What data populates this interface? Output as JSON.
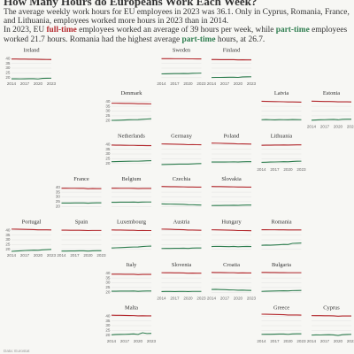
{
  "chart_data": {
    "type": "line",
    "title": "How Many Hours do Europeans Work Each Week?",
    "subtitle": "The average weekly work hours for EU employees in 2023 was 36.1. Only in Cyprus, Romania, France, and Lithuania, employees worked more hours in 2023 than in 2014.",
    "subtitle_2": [
      "In 2023, EU ",
      "full-time",
      " employees worked an average of 39 hours per week, while ",
      "part-time",
      " employees worked 21.7 hours. Romania had the highest average ",
      "part-time",
      " hours, at 26.7."
    ],
    "source": "Data: Eurostat",
    "colors": [
      "#b3282d",
      "#2e7d4f"
    ],
    "x": [
      2014,
      2015,
      2016,
      2017,
      2018,
      2019,
      2020,
      2021,
      2022,
      2023
    ],
    "xlim": [
      2014,
      2023
    ],
    "xticks": [
      2014,
      2017,
      2020,
      2023
    ],
    "ylim": [
      18,
      42
    ],
    "yticks": [
      20,
      25,
      30,
      35,
      40
    ],
    "grid": true,
    "panels": [
      {
        "title": "Ireland",
        "full_time": [
          39.5,
          39.5,
          39.4,
          39.4,
          39.3,
          39.3,
          39.2,
          39.1,
          39.0,
          38.9
        ],
        "part_time": [
          18.9,
          18.9,
          18.8,
          18.9,
          19.0,
          19.0,
          18.7,
          19.3,
          19.4,
          19.5
        ]
      },
      {
        "title": "Sweden",
        "full_time": [
          39.9,
          39.9,
          39.9,
          39.8,
          39.8,
          39.8,
          39.7,
          39.7,
          39.6,
          39.6
        ],
        "part_time": [
          24.0,
          24.1,
          24.2,
          24.3,
          24.3,
          24.4,
          24.3,
          24.6,
          24.7,
          24.8
        ]
      },
      {
        "title": "Finland",
        "full_time": [
          38.9,
          38.9,
          38.8,
          38.8,
          38.8,
          38.8,
          38.6,
          38.7,
          38.6,
          38.6
        ],
        "part_time": [
          20.2,
          20.3,
          20.3,
          20.4,
          20.5,
          20.5,
          20.3,
          20.8,
          20.9,
          21.0
        ]
      },
      {
        "title": "Denmark",
        "full_time": [
          38.2,
          38.2,
          38.1,
          38.0,
          38.0,
          37.9,
          37.7,
          37.7,
          37.6,
          37.5
        ],
        "part_time": [
          20.3,
          20.4,
          20.5,
          20.7,
          20.9,
          21.0,
          21.1,
          21.4,
          21.7,
          22.0
        ]
      },
      {
        "title": "Latvia",
        "full_time": [
          40.2,
          40.1,
          40.0,
          39.9,
          39.8,
          39.7,
          39.5,
          39.5,
          39.4,
          39.3
        ],
        "part_time": [
          21.0,
          21.2,
          21.0,
          20.8,
          21.1,
          21.0,
          20.9,
          21.2,
          21.1,
          21.0
        ]
      },
      {
        "title": "Estonia",
        "full_time": [
          40.3,
          40.2,
          40.1,
          40.0,
          40.0,
          39.9,
          39.6,
          39.7,
          39.6,
          39.5
        ],
        "part_time": [
          20.5,
          20.7,
          20.9,
          21.0,
          21.2,
          21.3,
          20.9,
          21.4,
          21.5,
          21.5
        ]
      },
      {
        "title": "Netherlands",
        "full_time": [
          39.3,
          39.2,
          39.2,
          39.1,
          39.0,
          39.0,
          38.8,
          38.8,
          38.7,
          38.7
        ],
        "part_time": [
          22.0,
          22.1,
          22.2,
          22.3,
          22.4,
          22.5,
          22.5,
          22.7,
          22.9,
          23.0
        ]
      },
      {
        "title": "Germany",
        "full_time": [
          40.5,
          40.4,
          40.3,
          40.2,
          40.1,
          40.0,
          39.7,
          39.8,
          39.7,
          39.6
        ],
        "part_time": [
          19.0,
          19.1,
          19.2,
          19.3,
          19.4,
          19.5,
          19.4,
          19.7,
          19.9,
          20.0
        ]
      },
      {
        "title": "Poland",
        "full_time": [
          41.4,
          41.3,
          41.2,
          41.0,
          40.9,
          40.8,
          40.5,
          40.6,
          40.4,
          40.3
        ],
        "part_time": [
          21.6,
          21.6,
          21.7,
          21.6,
          21.7,
          21.8,
          21.6,
          21.9,
          22.0,
          22.0
        ]
      },
      {
        "title": "Lithuania",
        "full_time": [
          39.1,
          39.2,
          39.2,
          39.3,
          39.3,
          39.4,
          39.3,
          39.4,
          39.5,
          39.5
        ],
        "part_time": [
          21.3,
          21.4,
          21.6,
          21.7,
          21.8,
          22.0,
          21.9,
          22.2,
          22.4,
          22.5
        ]
      },
      {
        "title": "France",
        "full_time": [
          39.1,
          39.1,
          39.0,
          39.0,
          38.9,
          38.9,
          38.5,
          38.7,
          38.6,
          38.6
        ],
        "part_time": [
          23.6,
          23.6,
          23.6,
          23.7,
          23.7,
          23.7,
          23.5,
          23.7,
          23.8,
          23.8
        ]
      },
      {
        "title": "Belgium",
        "full_time": [
          39.1,
          39.1,
          39.0,
          39.0,
          39.0,
          38.9,
          38.7,
          38.8,
          38.8,
          38.8
        ],
        "part_time": [
          24.4,
          24.4,
          24.5,
          24.5,
          24.5,
          24.6,
          24.4,
          24.6,
          24.7,
          24.7
        ]
      },
      {
        "title": "Czechia",
        "full_time": [
          40.9,
          40.8,
          40.7,
          40.7,
          40.6,
          40.5,
          40.3,
          40.3,
          40.2,
          40.2
        ],
        "part_time": [
          22.7,
          22.6,
          22.5,
          22.4,
          22.3,
          22.2,
          21.9,
          21.8,
          21.6,
          21.5
        ]
      },
      {
        "title": "Slovakia",
        "full_time": [
          40.9,
          40.8,
          40.8,
          40.7,
          40.6,
          40.5,
          40.3,
          40.3,
          40.2,
          40.2
        ],
        "part_time": [
          21.0,
          21.1,
          21.1,
          21.2,
          21.2,
          21.3,
          21.2,
          21.4,
          21.5,
          21.5
        ]
      },
      {
        "title": "Portugal",
        "full_time": [
          41.2,
          41.1,
          41.0,
          40.9,
          40.8,
          40.7,
          40.4,
          40.5,
          40.4,
          40.3
        ],
        "part_time": [
          18.0,
          18.3,
          18.5,
          18.8,
          19.0,
          19.2,
          19.1,
          19.6,
          19.8,
          20.0
        ]
      },
      {
        "title": "Spain",
        "full_time": [
          40.1,
          40.1,
          40.0,
          40.0,
          40.0,
          39.9,
          39.7,
          39.8,
          39.8,
          39.8
        ],
        "part_time": [
          18.3,
          18.3,
          18.4,
          18.4,
          18.5,
          18.5,
          18.3,
          18.5,
          18.6,
          18.6
        ]
      },
      {
        "title": "Luxembourg",
        "full_time": [
          40.3,
          40.2,
          40.2,
          40.1,
          40.0,
          40.0,
          39.7,
          39.8,
          39.7,
          39.7
        ],
        "part_time": [
          21.5,
          21.7,
          21.9,
          22.1,
          22.3,
          22.5,
          22.6,
          23.0,
          23.3,
          23.5
        ]
      },
      {
        "title": "Austria",
        "full_time": [
          41.2,
          41.1,
          41.0,
          40.8,
          40.7,
          40.6,
          40.2,
          40.2,
          40.1,
          40.0
        ],
        "part_time": [
          21.0,
          21.1,
          21.1,
          21.2,
          21.2,
          21.3,
          21.1,
          21.4,
          21.5,
          21.5
        ]
      },
      {
        "title": "Hungary",
        "full_time": [
          40.5,
          40.4,
          40.3,
          40.2,
          40.1,
          40.0,
          39.7,
          39.7,
          39.6,
          39.5
        ],
        "part_time": [
          23.0,
          23.2,
          23.1,
          23.0,
          22.9,
          23.1,
          22.8,
          23.0,
          23.1,
          23.0
        ]
      },
      {
        "title": "Romania",
        "full_time": [
          40.6,
          40.6,
          40.5,
          40.5,
          40.4,
          40.4,
          40.3,
          40.3,
          40.3,
          40.3
        ],
        "part_time": [
          24.3,
          24.5,
          24.4,
          24.6,
          24.9,
          25.2,
          25.1,
          26.3,
          26.5,
          26.7
        ]
      },
      {
        "title": "Italy",
        "full_time": [
          38.9,
          38.9,
          38.9,
          38.8,
          38.8,
          38.8,
          38.5,
          38.7,
          38.7,
          38.7
        ],
        "part_time": [
          21.2,
          21.2,
          21.3,
          21.3,
          21.3,
          21.4,
          21.1,
          21.3,
          21.4,
          21.4
        ]
      },
      {
        "title": "Slovenia",
        "full_time": [
          40.5,
          40.4,
          40.4,
          40.3,
          40.3,
          40.2,
          40.0,
          40.1,
          40.0,
          40.0
        ],
        "part_time": [
          20.8,
          20.9,
          20.9,
          20.8,
          20.9,
          21.0,
          20.8,
          21.0,
          21.0,
          21.0
        ]
      },
      {
        "title": "Croatia",
        "full_time": [
          40.8,
          40.7,
          40.7,
          40.6,
          40.5,
          40.5,
          40.2,
          40.3,
          40.2,
          40.2
        ],
        "part_time": [
          23.0,
          23.1,
          22.9,
          22.8,
          22.6,
          22.5,
          22.2,
          22.3,
          22.1,
          22.0
        ]
      },
      {
        "title": "Bulgaria",
        "full_time": [
          40.8,
          40.8,
          40.7,
          40.7,
          40.6,
          40.6,
          40.5,
          40.5,
          40.5,
          40.5
        ],
        "part_time": [
          21.0,
          21.2,
          21.3,
          21.4,
          21.5,
          21.6,
          21.5,
          21.8,
          21.9,
          22.0
        ]
      },
      {
        "title": "Malta",
        "full_time": [
          40.9,
          40.8,
          40.8,
          40.7,
          40.6,
          40.5,
          40.2,
          40.3,
          40.2,
          40.2
        ],
        "part_time": [
          20.5,
          20.8,
          20.9,
          21.0,
          21.2,
          21.4,
          20.9,
          22.6,
          21.8,
          22.0
        ]
      },
      {
        "title": "Greece",
        "full_time": [
          42.0,
          41.9,
          41.8,
          41.7,
          41.6,
          41.5,
          41.1,
          41.2,
          41.1,
          41.0
        ],
        "part_time": [
          21.0,
          21.1,
          21.1,
          21.2,
          21.3,
          21.3,
          21.0,
          21.4,
          21.5,
          21.5
        ]
      },
      {
        "title": "Cyprus",
        "full_time": [
          40.5,
          40.4,
          40.4,
          40.3,
          40.3,
          40.2,
          39.9,
          40.1,
          40.1,
          40.1
        ],
        "part_time": [
          20.2,
          20.4,
          20.3,
          20.5,
          20.6,
          20.4,
          19.8,
          20.6,
          20.8,
          21.0
        ]
      }
    ]
  }
}
